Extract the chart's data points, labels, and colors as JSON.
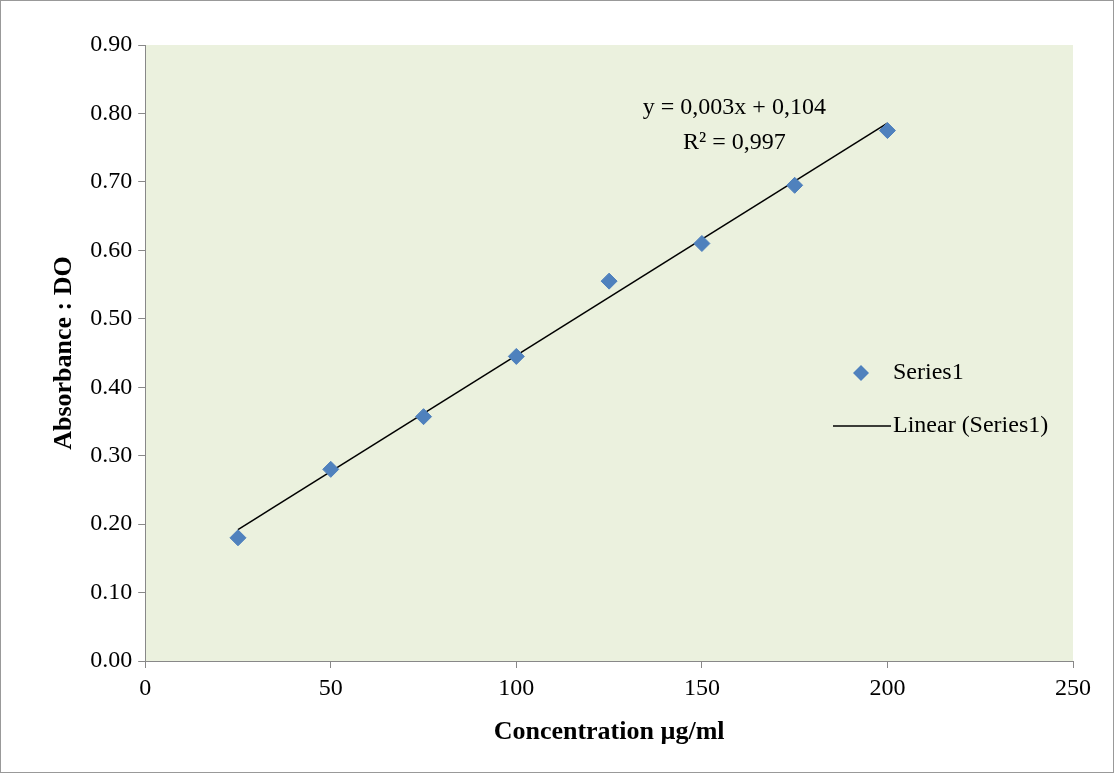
{
  "chart_data": {
    "type": "scatter",
    "xlabel": "Concentration µg/ml",
    "ylabel": "Absorbance : DO",
    "xlim": [
      0,
      250
    ],
    "xticks": [
      0,
      50,
      100,
      150,
      200,
      250
    ],
    "ylim": [
      0,
      0.9
    ],
    "yticks": [
      {
        "value": 0,
        "label": "0.00"
      },
      {
        "value": 0.1,
        "label": "0.10"
      },
      {
        "value": 0.2,
        "label": "0.20"
      },
      {
        "value": 0.3,
        "label": "0.30"
      },
      {
        "value": 0.4,
        "label": "0.40"
      },
      {
        "value": 0.5,
        "label": "0.50"
      },
      {
        "value": 0.6,
        "label": "0.60"
      },
      {
        "value": 0.7,
        "label": "0.70"
      },
      {
        "value": 0.8,
        "label": "0.80"
      },
      {
        "value": 0.9,
        "label": "0.90"
      }
    ],
    "x": [
      25,
      50,
      75,
      100,
      125,
      150,
      175,
      200
    ],
    "series": [
      {
        "name": "Series1",
        "marker": "diamond",
        "color": "#4f81bd",
        "values": [
          0.18,
          0.28,
          0.357,
          0.445,
          0.555,
          0.61,
          0.695,
          0.775
        ]
      },
      {
        "name": "Linear (Series1)",
        "type": "line",
        "marker": "none",
        "color": "#000000",
        "x": [
          25,
          200
        ],
        "values": [
          0.192,
          0.786
        ]
      }
    ],
    "annotations": [
      "y = 0,003x + 0,104",
      "R² = 0,997"
    ],
    "legend": "right",
    "grid": false
  }
}
